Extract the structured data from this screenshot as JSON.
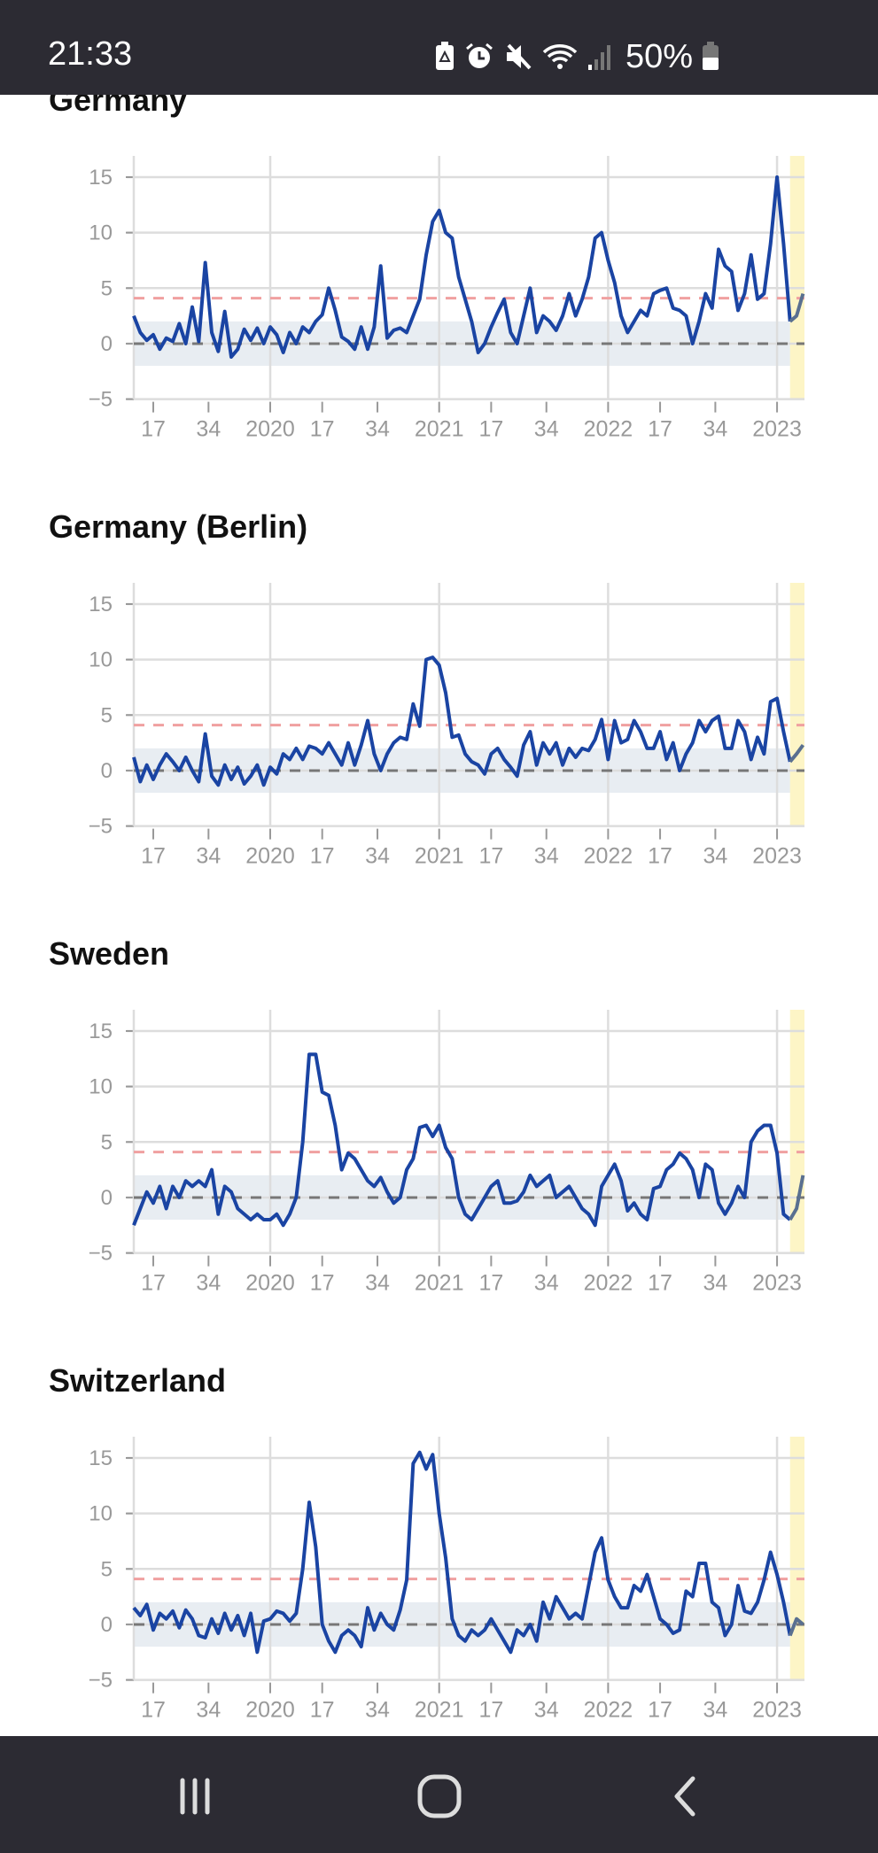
{
  "status_bar": {
    "time": "21:33",
    "battery": "50%",
    "icons": [
      "battery-saver-icon",
      "alarm-icon",
      "mute-icon",
      "wifi-icon",
      "signal-icon",
      "battery-icon"
    ]
  },
  "nav_bar": {
    "icons": [
      "recent-apps-icon",
      "home-icon",
      "back-icon"
    ]
  },
  "colors": {
    "line": "#1a44a3",
    "threshold": "#f0a0a0",
    "band": "#e8edf2",
    "highlight": "#fdf5c6",
    "grid": "#dddddd"
  },
  "chart_data": [
    {
      "type": "line",
      "title": "Germany",
      "start": "2019-W11",
      "step_weeks": 2,
      "yticks": [
        15,
        10,
        5,
        0,
        -5
      ],
      "ylim": [
        -5,
        15
      ],
      "threshold": 4.1,
      "band": [
        -2,
        2
      ],
      "reference": 0,
      "xticks": [
        {
          "label": "17",
          "week": 6
        },
        {
          "label": "34",
          "week": 23
        },
        {
          "label": "2020",
          "week": 42
        },
        {
          "label": "17",
          "week": 58
        },
        {
          "label": "34",
          "week": 75
        },
        {
          "label": "2021",
          "week": 94
        },
        {
          "label": "17",
          "week": 110
        },
        {
          "label": "34",
          "week": 127
        },
        {
          "label": "2022",
          "week": 146
        },
        {
          "label": "17",
          "week": 162
        },
        {
          "label": "34",
          "week": 179
        },
        {
          "label": "2023",
          "week": 198
        }
      ],
      "highlight_weeks": [
        203,
        206
      ],
      "values": [
        2.5,
        1,
        0.3,
        0.8,
        -0.5,
        0.5,
        0.2,
        1.8,
        0,
        3.3,
        0.2,
        7.3,
        1,
        -0.7,
        2.9,
        -1.2,
        -0.5,
        1.3,
        0.3,
        1.4,
        0,
        1.5,
        0.8,
        -0.8,
        1,
        0,
        1.5,
        1,
        2,
        2.6,
        5,
        3,
        0.6,
        0.2,
        -0.5,
        1.5,
        -0.5,
        1.5,
        7,
        0.5,
        1.2,
        1.4,
        1,
        2.5,
        4,
        8,
        11,
        12,
        10,
        9.5,
        6,
        4,
        2,
        -0.8,
        0,
        1.5,
        2.8,
        4,
        1,
        0,
        2.5,
        5,
        1,
        2.5,
        2,
        1.2,
        2.5,
        4.5,
        2.5,
        4,
        6,
        9.5,
        10,
        7.5,
        5.5,
        2.5,
        1,
        2,
        3,
        2.5,
        4.5,
        4.8,
        5,
        3.2,
        3,
        2.5,
        0,
        2,
        4.5,
        3.2,
        8.5,
        7,
        6.5,
        3,
        4.5,
        8,
        4,
        4.5,
        9,
        15,
        9,
        2,
        2.5,
        4.5
      ]
    },
    {
      "type": "line",
      "title": "Germany (Berlin)",
      "start": "2019-W11",
      "step_weeks": 2,
      "yticks": [
        15,
        10,
        5,
        0,
        -5
      ],
      "ylim": [
        -5,
        15
      ],
      "threshold": 4.1,
      "band": [
        -2,
        2
      ],
      "reference": 0,
      "xticks": [
        {
          "label": "17",
          "week": 6
        },
        {
          "label": "34",
          "week": 23
        },
        {
          "label": "2020",
          "week": 42
        },
        {
          "label": "17",
          "week": 58
        },
        {
          "label": "34",
          "week": 75
        },
        {
          "label": "2021",
          "week": 94
        },
        {
          "label": "17",
          "week": 110
        },
        {
          "label": "34",
          "week": 127
        },
        {
          "label": "2022",
          "week": 146
        },
        {
          "label": "17",
          "week": 162
        },
        {
          "label": "34",
          "week": 179
        },
        {
          "label": "2023",
          "week": 198
        }
      ],
      "highlight_weeks": [
        203,
        206
      ],
      "values": [
        1.2,
        -1,
        0.5,
        -0.8,
        0.5,
        1.5,
        0.8,
        0,
        1.2,
        0,
        -1,
        3.3,
        -0.5,
        -1.3,
        0.5,
        -0.8,
        0.3,
        -1.2,
        -0.5,
        0.5,
        -1.3,
        0.3,
        -0.3,
        1.5,
        1,
        2,
        1,
        2.2,
        2,
        1.5,
        2.5,
        1.5,
        0.5,
        2.5,
        0.5,
        2.3,
        4.5,
        1.5,
        0,
        1.5,
        2.5,
        3,
        2.8,
        6,
        4,
        10,
        10.2,
        9.5,
        7,
        3,
        3.2,
        1.5,
        0.8,
        0.5,
        -0.3,
        1.5,
        2,
        1,
        0.3,
        -0.5,
        2.3,
        3.5,
        0.5,
        2.5,
        1.5,
        2.5,
        0.5,
        2,
        1.2,
        2,
        1.8,
        2.8,
        4.6,
        1,
        4.5,
        2.5,
        2.8,
        4.5,
        3.5,
        2,
        2,
        3.5,
        1,
        2.5,
        0,
        1.5,
        2.5,
        4.5,
        3.5,
        4.5,
        4.9,
        2,
        2,
        4.5,
        3.5,
        1,
        3,
        1.5,
        6.2,
        6.5,
        3.5,
        0.8,
        1.5,
        2.3
      ]
    },
    {
      "type": "line",
      "title": "Sweden",
      "start": "2019-W11",
      "step_weeks": 2,
      "yticks": [
        15,
        10,
        5,
        0,
        -5
      ],
      "ylim": [
        -5,
        15
      ],
      "threshold": 4.1,
      "band": [
        -2,
        2
      ],
      "reference": 0,
      "xticks": [
        {
          "label": "17",
          "week": 6
        },
        {
          "label": "34",
          "week": 23
        },
        {
          "label": "2020",
          "week": 42
        },
        {
          "label": "17",
          "week": 58
        },
        {
          "label": "34",
          "week": 75
        },
        {
          "label": "2021",
          "week": 94
        },
        {
          "label": "17",
          "week": 110
        },
        {
          "label": "34",
          "week": 127
        },
        {
          "label": "2022",
          "week": 146
        },
        {
          "label": "17",
          "week": 162
        },
        {
          "label": "34",
          "week": 179
        },
        {
          "label": "2023",
          "week": 198
        }
      ],
      "highlight_weeks": [
        203,
        206
      ],
      "values": [
        -2.5,
        -1,
        0.5,
        -0.5,
        1,
        -1,
        1,
        0,
        1.5,
        1,
        1.5,
        1,
        2.5,
        -1.5,
        1,
        0.5,
        -1,
        -1.5,
        -2,
        -1.5,
        -2,
        -2,
        -1.5,
        -2.5,
        -1.5,
        0,
        5,
        12.9,
        12.9,
        9.5,
        9.2,
        6.5,
        2.5,
        4,
        3.5,
        2.5,
        1.5,
        1,
        1.8,
        0.5,
        -0.5,
        0,
        2.5,
        3.5,
        6.3,
        6.5,
        5.5,
        6.5,
        4.5,
        3.5,
        0,
        -1.5,
        -2,
        -1,
        0,
        1,
        1.5,
        -0.5,
        -0.5,
        -0.3,
        0.5,
        2,
        1,
        1.5,
        2,
        0,
        0.5,
        1,
        0,
        -1,
        -1.5,
        -2.5,
        1,
        2,
        3,
        1.5,
        -1.2,
        -0.5,
        -1.5,
        -2,
        0.8,
        1,
        2.5,
        3,
        4,
        3.5,
        2.5,
        0,
        3,
        2.5,
        -0.5,
        -1.5,
        -0.5,
        1,
        0,
        5,
        6,
        6.5,
        6.5,
        4,
        -1.5,
        -2,
        -1,
        2
      ]
    },
    {
      "type": "line",
      "title": "Switzerland",
      "start": "2019-W11",
      "step_weeks": 2,
      "yticks": [
        15,
        10,
        5,
        0,
        -5
      ],
      "ylim": [
        -5,
        15
      ],
      "threshold": 4.1,
      "band": [
        -2,
        2
      ],
      "reference": 0,
      "xticks": [
        {
          "label": "17",
          "week": 6
        },
        {
          "label": "34",
          "week": 23
        },
        {
          "label": "2020",
          "week": 42
        },
        {
          "label": "17",
          "week": 58
        },
        {
          "label": "34",
          "week": 75
        },
        {
          "label": "2021",
          "week": 94
        },
        {
          "label": "17",
          "week": 110
        },
        {
          "label": "34",
          "week": 127
        },
        {
          "label": "2022",
          "week": 146
        },
        {
          "label": "17",
          "week": 162
        },
        {
          "label": "34",
          "week": 179
        },
        {
          "label": "2023",
          "week": 198
        }
      ],
      "highlight_weeks": [
        203,
        206
      ],
      "values": [
        1.5,
        0.8,
        1.8,
        -0.5,
        1,
        0.5,
        1.2,
        -0.3,
        1.3,
        0.5,
        -1,
        -1.2,
        0.5,
        -0.8,
        1,
        -0.5,
        0.8,
        -1,
        1,
        -2.5,
        0.3,
        0.5,
        1.2,
        1,
        0.3,
        1,
        5,
        11,
        7,
        0,
        -1.5,
        -2.5,
        -1,
        -0.5,
        -1,
        -2,
        1.5,
        -0.5,
        1,
        0,
        -0.5,
        1.3,
        4,
        14.5,
        15.5,
        14,
        15.3,
        10,
        6,
        0.5,
        -1,
        -1.5,
        -0.5,
        -1,
        -0.5,
        0.5,
        -0.5,
        -1.5,
        -2.5,
        -0.5,
        -1,
        0,
        -1.5,
        2,
        0.5,
        2.5,
        1.5,
        0.5,
        1,
        0.5,
        3.5,
        6.5,
        7.8,
        4,
        2.5,
        1.5,
        1.5,
        3.5,
        3,
        4.5,
        2.5,
        0.5,
        0,
        -0.8,
        -0.5,
        3,
        2.5,
        5.5,
        5.5,
        2,
        1.5,
        -1,
        0,
        3.5,
        1.2,
        1,
        2,
        4,
        6.5,
        4.5,
        2,
        -1,
        0.5,
        0
      ]
    }
  ]
}
